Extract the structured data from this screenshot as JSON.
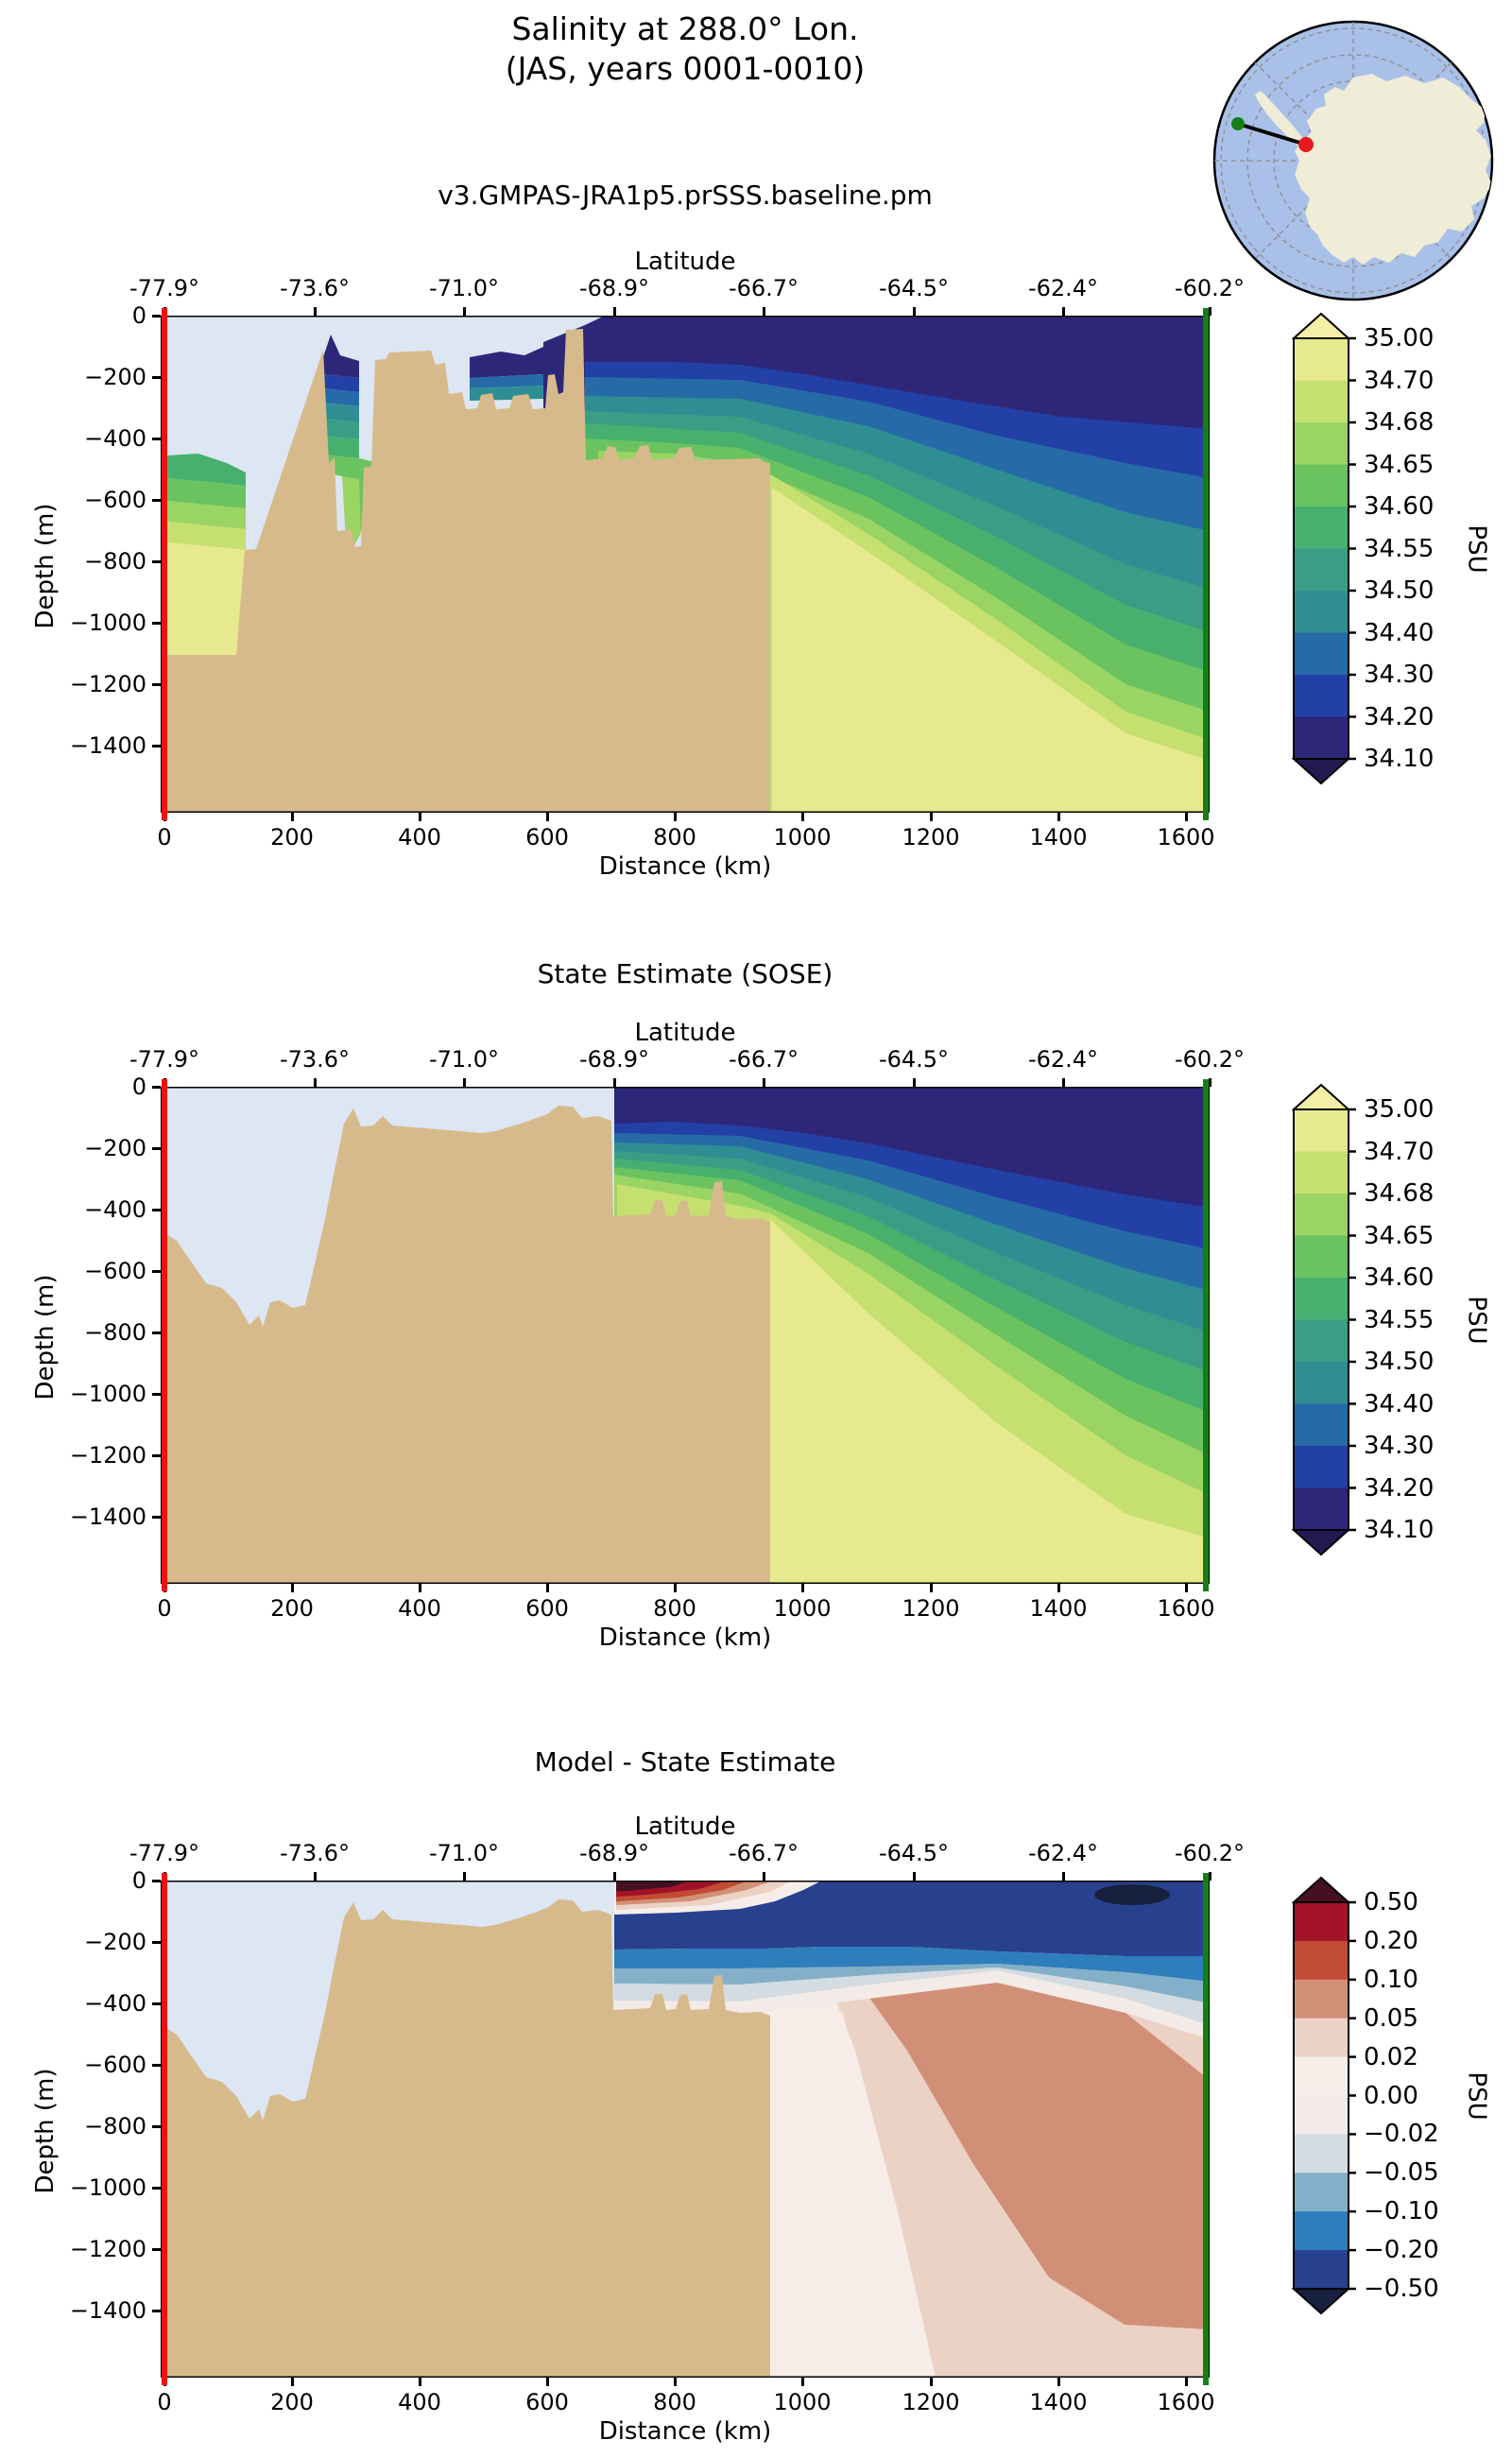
{
  "figure": {
    "title_line1": "Salinity at 288.0° Lon.",
    "title_line2": "(JAS, years 0001-0010)",
    "subtitle": "v3.GMPAS-JRA1p5.prSSS.baseline.pm",
    "panel2_title": "State Estimate (SOSE)",
    "panel3_title": "Model - State Estimate"
  },
  "axes": {
    "lat_label": "Latitude",
    "lat_ticks": [
      "-77.9°",
      "-73.6°",
      "-71.0°",
      "-68.9°",
      "-66.7°",
      "-64.5°",
      "-62.4°",
      "-60.2°"
    ],
    "dist_label": "Distance (km)",
    "dist_ticks": [
      "0",
      "200",
      "400",
      "600",
      "800",
      "1000",
      "1200",
      "1400",
      "1600"
    ],
    "depth_label": "Depth (m)",
    "depth_ticks": [
      "0",
      "−200",
      "−400",
      "−600",
      "−800",
      "−1000",
      "−1200",
      "−1400"
    ]
  },
  "colorbars": {
    "salinity": {
      "unit": "PSU",
      "tick_labels_top_to_bottom": [
        "35.00",
        "34.70",
        "34.68",
        "34.65",
        "34.60",
        "34.55",
        "34.50",
        "34.40",
        "34.30",
        "34.20",
        "34.10"
      ],
      "band_colors_low_to_high": [
        "#2e2779",
        "#2340a6",
        "#266ba8",
        "#2f8e93",
        "#3a9d85",
        "#48b06e",
        "#6ac35f",
        "#9ad465",
        "#c6e070",
        "#e7e98f"
      ],
      "under_color": "#241a52",
      "over_color": "#f4efa5",
      "extend": "both"
    },
    "difference": {
      "unit": "PSU",
      "tick_labels_top_to_bottom": [
        "0.50",
        "0.20",
        "0.10",
        "0.05",
        "0.02",
        "0.00",
        "−0.02",
        "−0.05",
        "−0.10",
        "−0.20",
        "−0.50"
      ],
      "band_colors_low_to_high": [
        "#28418f",
        "#2f7ebc",
        "#84afc9",
        "#d3dce2",
        "#f2ebe7",
        "#f7ede8",
        "#ecd2c5",
        "#d28f77",
        "#c24b33",
        "#a21229"
      ],
      "under_color": "#17203f",
      "over_color": "#451020",
      "extend": "both"
    }
  },
  "colors": {
    "plot_background_ocean": "#dde6f3",
    "land_mask": "#d7ba8c",
    "transect_start_line": "#ee1111",
    "transect_end_line": "#157f15",
    "map_ocean": "#a9c0e8",
    "map_land": "#efecd8",
    "map_grid": "#8d8d8d"
  },
  "inset_map": {
    "description": "South polar stereographic map of Antarctica with transect line",
    "start_marker": "green-dot",
    "end_marker": "red-dot"
  },
  "chart_data": {
    "type": "heatmap",
    "subtype": "filled-contour ocean transect sections (3 stacked panels)",
    "variable": "Salinity",
    "unit": "PSU",
    "longitude_deg": 288.0,
    "season": "JAS",
    "years": "0001-0010",
    "x_axis": {
      "label": "Distance (km)",
      "ticks": [
        0,
        200,
        400,
        600,
        800,
        1000,
        1200,
        1400,
        1600
      ],
      "range_km": [
        0,
        1630
      ]
    },
    "top_axis": {
      "label": "Latitude",
      "ticks_deg": [
        -77.9,
        -73.6,
        -71.0,
        -68.9,
        -66.7,
        -64.5,
        -62.4,
        -60.2
      ]
    },
    "y_axis": {
      "label": "Depth (m)",
      "ticks": [
        0,
        -200,
        -400,
        -600,
        -800,
        -1000,
        -1200,
        -1400
      ],
      "range_m": [
        0,
        -1600
      ]
    },
    "panels": [
      {
        "title": "v3.GMPAS-JRA1p5.prSSS.baseline.pm",
        "field": "model salinity",
        "levels_psu": [
          34.1,
          34.2,
          34.3,
          34.4,
          34.5,
          34.55,
          34.6,
          34.65,
          34.68,
          34.7,
          35.0
        ],
        "features": [
          "fresh (<34.2) surface layer from ~650 km to 1630 km, thickening to ~400 m at the -60.2° end",
          "salinity bands 34.2-34.7 arc downward toward the northeast, reaching ~1400 m at the right edge",
          "salty (34.7-35.0) deep pool below ~500 m beyond ~950 km",
          "on-shelf patches: 34.5-35.0 water at 450-1100 m near 0-130 km; stratified column near 270-330 km; fresh surface wedge 480-660 km",
          "tan land/bathymetry mask with deep trough at 0-150 km and shelf plateau 330-950 km"
        ]
      },
      {
        "title": "State Estimate (SOSE)",
        "field": "SOSE salinity",
        "levels_psu": [
          34.1,
          34.2,
          34.3,
          34.4,
          34.5,
          34.55,
          34.6,
          34.65,
          34.68,
          34.7,
          35.0
        ],
        "features": [
          "no data on shelf (light-blue background) until ~705 km",
          "fresh (<34.2) surface layer deepening from ~120 m at 705 km to ~400 m at 1630 km",
          "smooth banded halocline diving toward the right; 34.7-35.0 pool below ~430 m beyond ~950 km",
          "green 34.65-34.70 tongue touching the shelf bottom near 880-950 km at ~350-430 m"
        ]
      },
      {
        "title": "Model - State Estimate",
        "field": "salinity difference (model minus SOSE)",
        "levels_psu": [
          -0.5,
          -0.2,
          -0.1,
          -0.05,
          -0.02,
          0.0,
          0.02,
          0.05,
          0.1,
          0.2,
          0.5
        ],
        "features": [
          "strong positive (>0.5, dark maroon/red) surface bias 705-900 km in the top ~80 m",
          "strong negative (-0.2 to <-0.5, dark blue) bias band ~100-250 m near the shelf break and over the whole upper 250 m beyond ~1000 km, darkest blob near 1450-1550 km at the surface",
          "broad positive (0.05-0.10, salmon) bias swath from ~1050 km, 200 m sloping down to ~1450 m at 1630 km",
          "near-zero (white) differences over the deep pool between 950-1100 km and below the salmon swath"
        ]
      }
    ],
    "transect": {
      "start": {
        "distance_km": 0,
        "lat_deg": -77.9,
        "marker_color": "red"
      },
      "end": {
        "distance_km": 1630,
        "lat_deg": -60.2,
        "marker_color": "green"
      }
    },
    "bathymetry_profile_model_km_m": [
      [
        0,
        1105
      ],
      [
        120,
        1105
      ],
      [
        135,
        760
      ],
      [
        250,
        110
      ],
      [
        300,
        740
      ],
      [
        330,
        490
      ],
      [
        350,
        130
      ],
      [
        420,
        115
      ],
      [
        470,
        290
      ],
      [
        600,
        195
      ],
      [
        630,
        45
      ],
      [
        660,
        470
      ],
      [
        930,
        466
      ],
      [
        948,
        480
      ],
      [
        950,
        1600
      ]
    ],
    "bathymetry_profile_sose_km_m": [
      [
        0,
        468
      ],
      [
        150,
        780
      ],
      [
        300,
        70
      ],
      [
        500,
        150
      ],
      [
        620,
        60
      ],
      [
        700,
        110
      ],
      [
        705,
        420
      ],
      [
        930,
        430
      ],
      [
        948,
        440
      ],
      [
        950,
        1600
      ]
    ]
  }
}
